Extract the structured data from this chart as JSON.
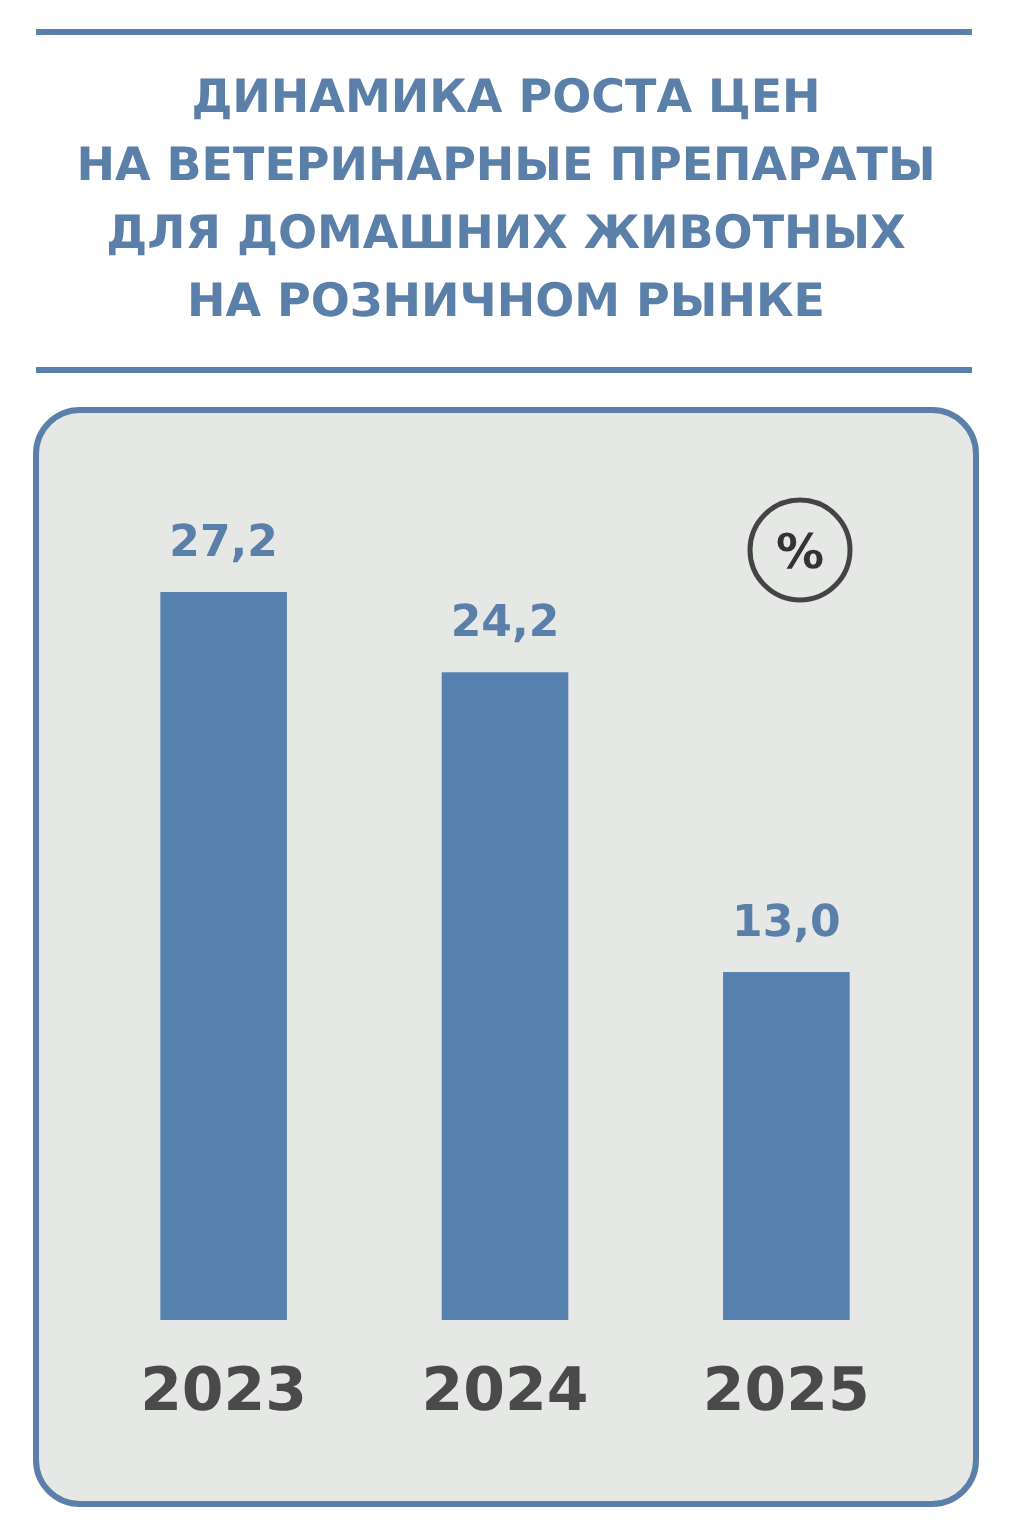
{
  "chart_data": {
    "type": "bar",
    "title": "ДИНАМИКА РОСТА ЦЕН\nНА ВЕТЕРИНАРНЫЕ ПРЕПАРАТЫ\nДЛЯ ДОМАШНИХ ЖИВОТНЫХ\nНА РОЗНИЧНОМ РЫНКЕ",
    "categories": [
      "2023",
      "2024",
      "2025"
    ],
    "values": [
      27.2,
      24.2,
      13.0
    ],
    "value_labels": [
      "27,2",
      "24,2",
      "13,0"
    ],
    "color": "#5680ad",
    "annotations": [
      "%"
    ]
  }
}
